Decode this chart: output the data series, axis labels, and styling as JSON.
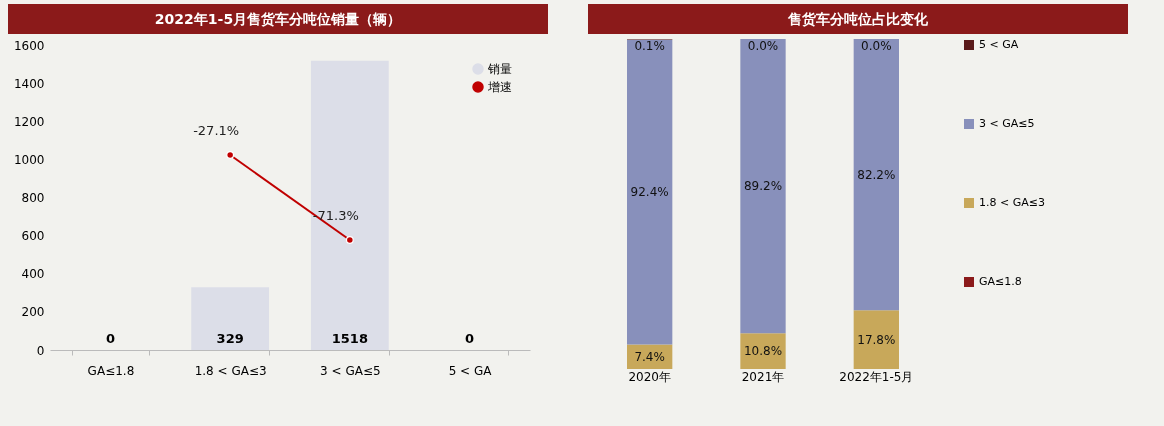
{
  "chart_data": [
    {
      "type": "bar",
      "title": "2022年1-5月售货车分吨位销量（辆）",
      "categories": [
        "GA≤1.8",
        "1.8 < GA≤3",
        "3 < GA≤5",
        "5 < GA"
      ],
      "series": [
        {
          "name": "销量",
          "color": "#dcdee8",
          "values": [
            0,
            329,
            1518,
            0
          ]
        },
        {
          "name": "增速",
          "type": "line",
          "axis": "y2",
          "color": "#c00000",
          "values": [
            null,
            -27.1,
            -71.3,
            null
          ],
          "value_labels": [
            null,
            "-27.1%",
            "-71.3%",
            null
          ]
        }
      ],
      "ylim": [
        0,
        1600
      ],
      "yticks": [
        0,
        200,
        400,
        600,
        800,
        1000,
        1200,
        1400,
        1600
      ],
      "data_labels": true,
      "marker": "circle",
      "legend": "top right",
      "grid": false
    },
    {
      "type": "bar",
      "title": "售货车分吨位占比变化",
      "categories": [
        "2020年",
        "2021年",
        "2022年1-5月"
      ],
      "stacked": true,
      "series": [
        {
          "name": "GA≤1.8",
          "color": "#8b1a1a",
          "values": [
            0,
            0,
            0
          ],
          "value_labels": [
            null,
            null,
            null
          ]
        },
        {
          "name": "1.8 < GA≤3",
          "color": "#c8a85a",
          "values": [
            7.4,
            10.8,
            17.8
          ],
          "value_labels": [
            "7.4%",
            "10.8%",
            "17.8%"
          ]
        },
        {
          "name": "3 < GA≤5",
          "color": "#8890bb",
          "values": [
            92.4,
            89.2,
            82.2
          ],
          "value_labels": [
            "92.4%",
            "89.2%",
            "82.2%"
          ]
        },
        {
          "name": "5 < GA",
          "color": "#5a1a1a",
          "values": [
            0.1,
            0.0,
            0.0
          ],
          "value_labels": [
            "0.1%",
            "0.0%",
            "0.0%"
          ]
        }
      ],
      "ylim": [
        0,
        100
      ],
      "tick_labels": "x",
      "legend": "right"
    }
  ]
}
